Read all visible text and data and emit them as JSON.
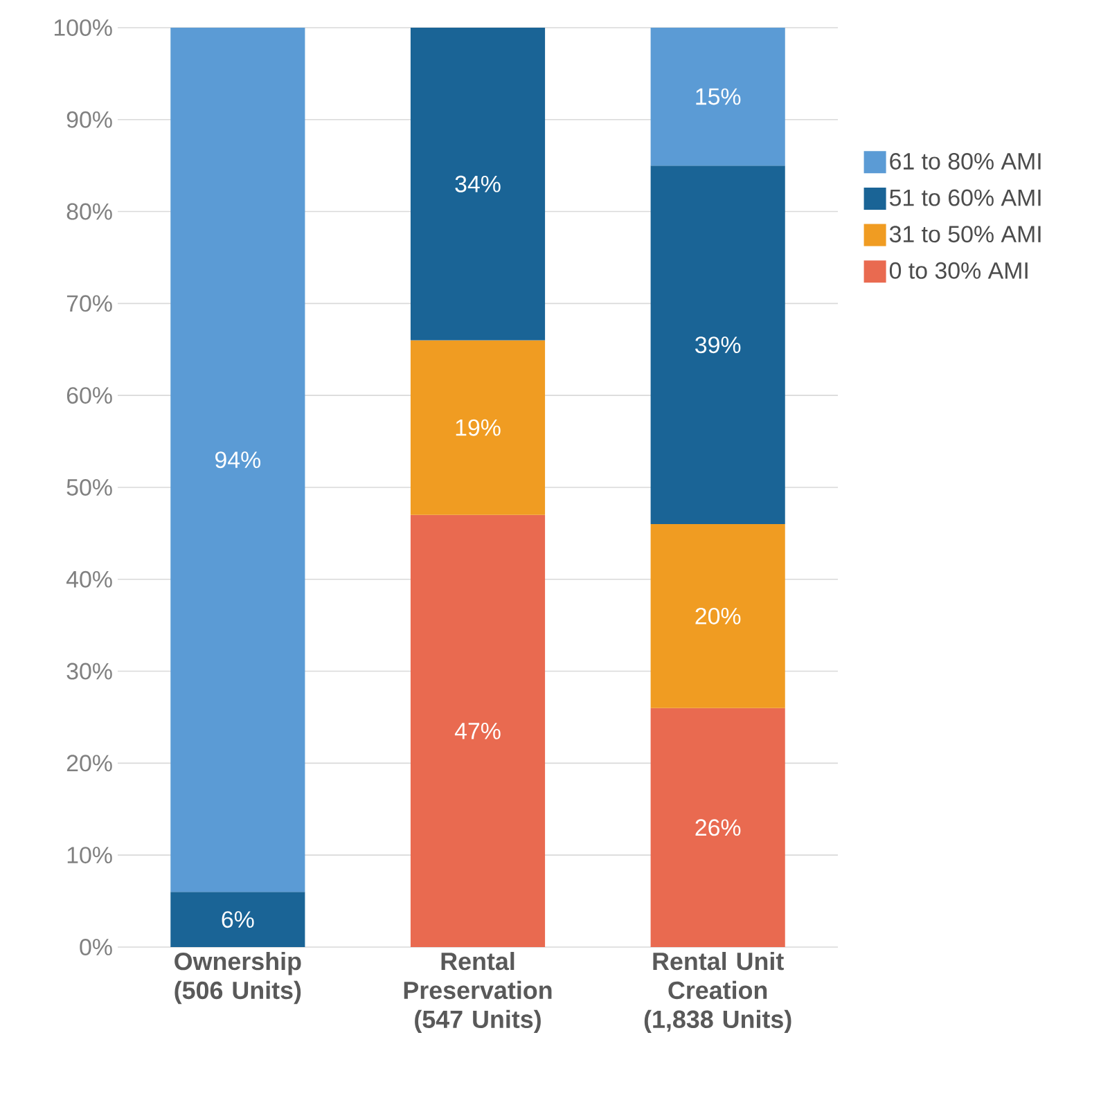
{
  "chart_data": {
    "type": "bar",
    "stacked": true,
    "categories": [
      "Ownership (506 Units)",
      "Rental Preservation (547 Units)",
      "Rental Unit Creation (1,838 Units)"
    ],
    "series": [
      {
        "name": "0 to 30% AMI",
        "color": "#e96a50",
        "values": [
          0,
          47,
          26
        ],
        "value_labels": [
          null,
          "47%",
          "26%"
        ]
      },
      {
        "name": "31 to 50% AMI",
        "color": "#f09c22",
        "values": [
          0,
          19,
          20
        ],
        "value_labels": [
          null,
          "19%",
          "20%"
        ]
      },
      {
        "name": "51 to 60% AMI",
        "color": "#1a6496",
        "values": [
          6,
          34,
          39
        ],
        "value_labels": [
          "6%",
          "34%",
          "39%"
        ]
      },
      {
        "name": "61 to 80% AMI",
        "color": "#5b9bd5",
        "values": [
          94,
          0,
          15
        ],
        "value_labels": [
          "94%",
          null,
          "15%"
        ]
      }
    ],
    "ylim": [
      0,
      100
    ],
    "yticks": [
      {
        "value": 0,
        "label": "0%"
      },
      {
        "value": 10,
        "label": "10%"
      },
      {
        "value": 20,
        "label": "20%"
      },
      {
        "value": 30,
        "label": "30%"
      },
      {
        "value": 40,
        "label": "40%"
      },
      {
        "value": 50,
        "label": "50%"
      },
      {
        "value": 60,
        "label": "60%"
      },
      {
        "value": 70,
        "label": "70%"
      },
      {
        "value": 80,
        "label": "80%"
      },
      {
        "value": 90,
        "label": "90%"
      },
      {
        "value": 100,
        "label": "100%"
      }
    ],
    "grid": "y",
    "legend": "right"
  }
}
